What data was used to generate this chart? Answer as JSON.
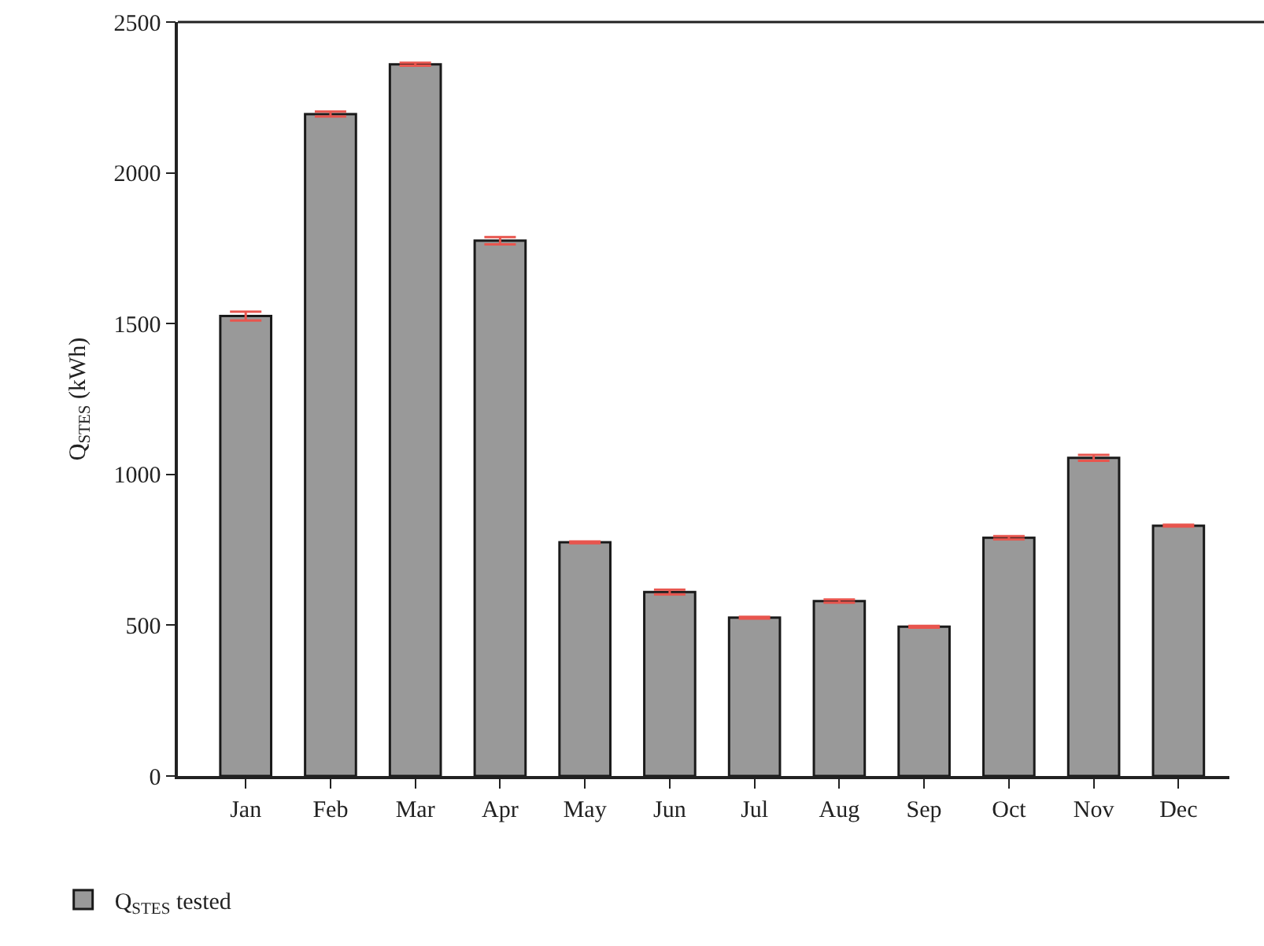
{
  "chart_data": {
    "type": "bar",
    "categories": [
      "Jan",
      "Feb",
      "Mar",
      "Apr",
      "May",
      "Jun",
      "Jul",
      "Aug",
      "Sep",
      "Oct",
      "Nov",
      "Dec"
    ],
    "series": [
      {
        "name": "Q$_{STES}$ tested",
        "color": "#999999",
        "values": [
          1525,
          2195,
          2360,
          1775,
          775,
          610,
          525,
          580,
          495,
          790,
          1055,
          830
        ],
        "errors": [
          15,
          8,
          5,
          12,
          3,
          8,
          3,
          5,
          3,
          5,
          10,
          3
        ]
      }
    ],
    "ylabel": "Q$_{STES}$ (kWh)",
    "ylim": [
      0,
      2500
    ],
    "yticks": [
      0,
      500,
      1000,
      1500,
      2000,
      2500
    ],
    "grid": false,
    "legend": "bottom left"
  }
}
